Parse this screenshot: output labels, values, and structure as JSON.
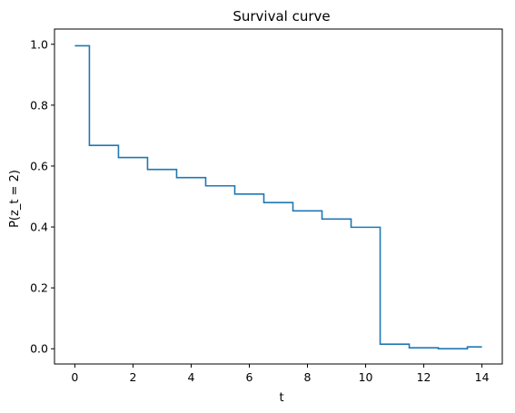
{
  "chart_data": {
    "type": "line",
    "drawstyle": "steps-mid",
    "title": "Survival curve",
    "xlabel": "t",
    "ylabel": "P(z_t = 2)",
    "xlim": [
      -0.7,
      14.7
    ],
    "ylim": [
      -0.05,
      1.05
    ],
    "xticks": [
      0,
      2,
      4,
      6,
      8,
      10,
      12,
      14
    ],
    "yticks": [
      0.0,
      0.2,
      0.4,
      0.6,
      0.8,
      1.0
    ],
    "xtick_labels": [
      "0",
      "2",
      "4",
      "6",
      "8",
      "10",
      "12",
      "14"
    ],
    "ytick_labels": [
      "0.0",
      "0.2",
      "0.4",
      "0.6",
      "0.8",
      "1.0"
    ],
    "grid": false,
    "series": [
      {
        "color": "#1f77b4",
        "x": [
          0,
          1,
          2,
          3,
          4,
          5,
          6,
          7,
          8,
          9,
          10,
          11,
          12,
          13,
          14
        ],
        "y": [
          0.995,
          0.668,
          0.628,
          0.589,
          0.562,
          0.535,
          0.508,
          0.48,
          0.453,
          0.426,
          0.399,
          0.015,
          0.003,
          0.0,
          0.006
        ]
      }
    ]
  }
}
